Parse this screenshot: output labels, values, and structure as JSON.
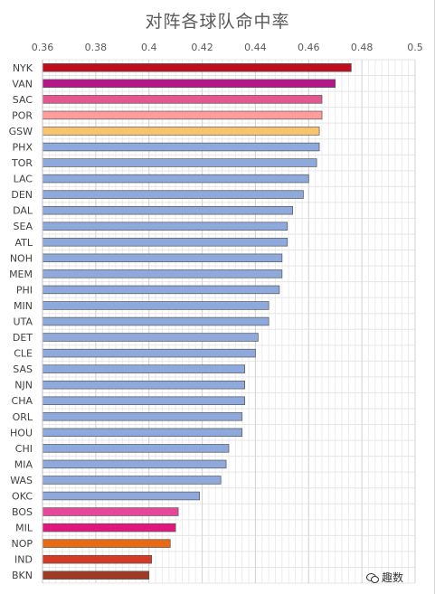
{
  "chart_data": {
    "type": "bar",
    "orientation": "horizontal",
    "title": "对阵各球队命中率",
    "xlabel": "",
    "ylabel": "",
    "xlim": [
      0.36,
      0.5
    ],
    "xticks": [
      "0.36",
      "0.38",
      "0.4",
      "0.42",
      "0.44",
      "0.46",
      "0.48",
      "0.5"
    ],
    "xtick_values": [
      0.36,
      0.38,
      0.4,
      0.42,
      0.44,
      0.46,
      0.48,
      0.5
    ],
    "grid": true,
    "x_axis_position": "top",
    "categories": [
      "NYK",
      "VAN",
      "SAC",
      "POR",
      "GSW",
      "PHX",
      "TOR",
      "LAC",
      "DEN",
      "DAL",
      "SEA",
      "ATL",
      "NOH",
      "MEM",
      "PHI",
      "MIN",
      "UTA",
      "DET",
      "CLE",
      "SAS",
      "NJN",
      "CHA",
      "ORL",
      "HOU",
      "CHI",
      "MIA",
      "WAS",
      "OKC",
      "BOS",
      "MIL",
      "NOP",
      "IND",
      "BKN"
    ],
    "values": [
      0.476,
      0.47,
      0.465,
      0.465,
      0.464,
      0.464,
      0.463,
      0.46,
      0.458,
      0.454,
      0.452,
      0.452,
      0.45,
      0.45,
      0.449,
      0.445,
      0.445,
      0.441,
      0.44,
      0.436,
      0.436,
      0.436,
      0.435,
      0.435,
      0.43,
      0.429,
      0.427,
      0.419,
      0.411,
      0.41,
      0.408,
      0.401,
      0.4
    ],
    "bar_colors": [
      "#c00d1e",
      "#b5178a",
      "#e3588f",
      "#ff9c9c",
      "#f7c46c",
      "#8ea9db",
      "#8ea9db",
      "#8ea9db",
      "#8ea9db",
      "#8ea9db",
      "#8ea9db",
      "#8ea9db",
      "#8ea9db",
      "#8ea9db",
      "#8ea9db",
      "#8ea9db",
      "#8ea9db",
      "#8ea9db",
      "#8ea9db",
      "#8ea9db",
      "#8ea9db",
      "#8ea9db",
      "#8ea9db",
      "#8ea9db",
      "#8ea9db",
      "#8ea9db",
      "#8ea9db",
      "#8ea9db",
      "#e6479a",
      "#e0177d",
      "#ea6a13",
      "#d63a26",
      "#9e3a25"
    ]
  },
  "watermark": {
    "text": "趣数",
    "icon": "wechat-icon"
  },
  "colors": {
    "bar_stroke": "#555555",
    "grid": "#e6e6e6",
    "axis_text": "#595959"
  }
}
